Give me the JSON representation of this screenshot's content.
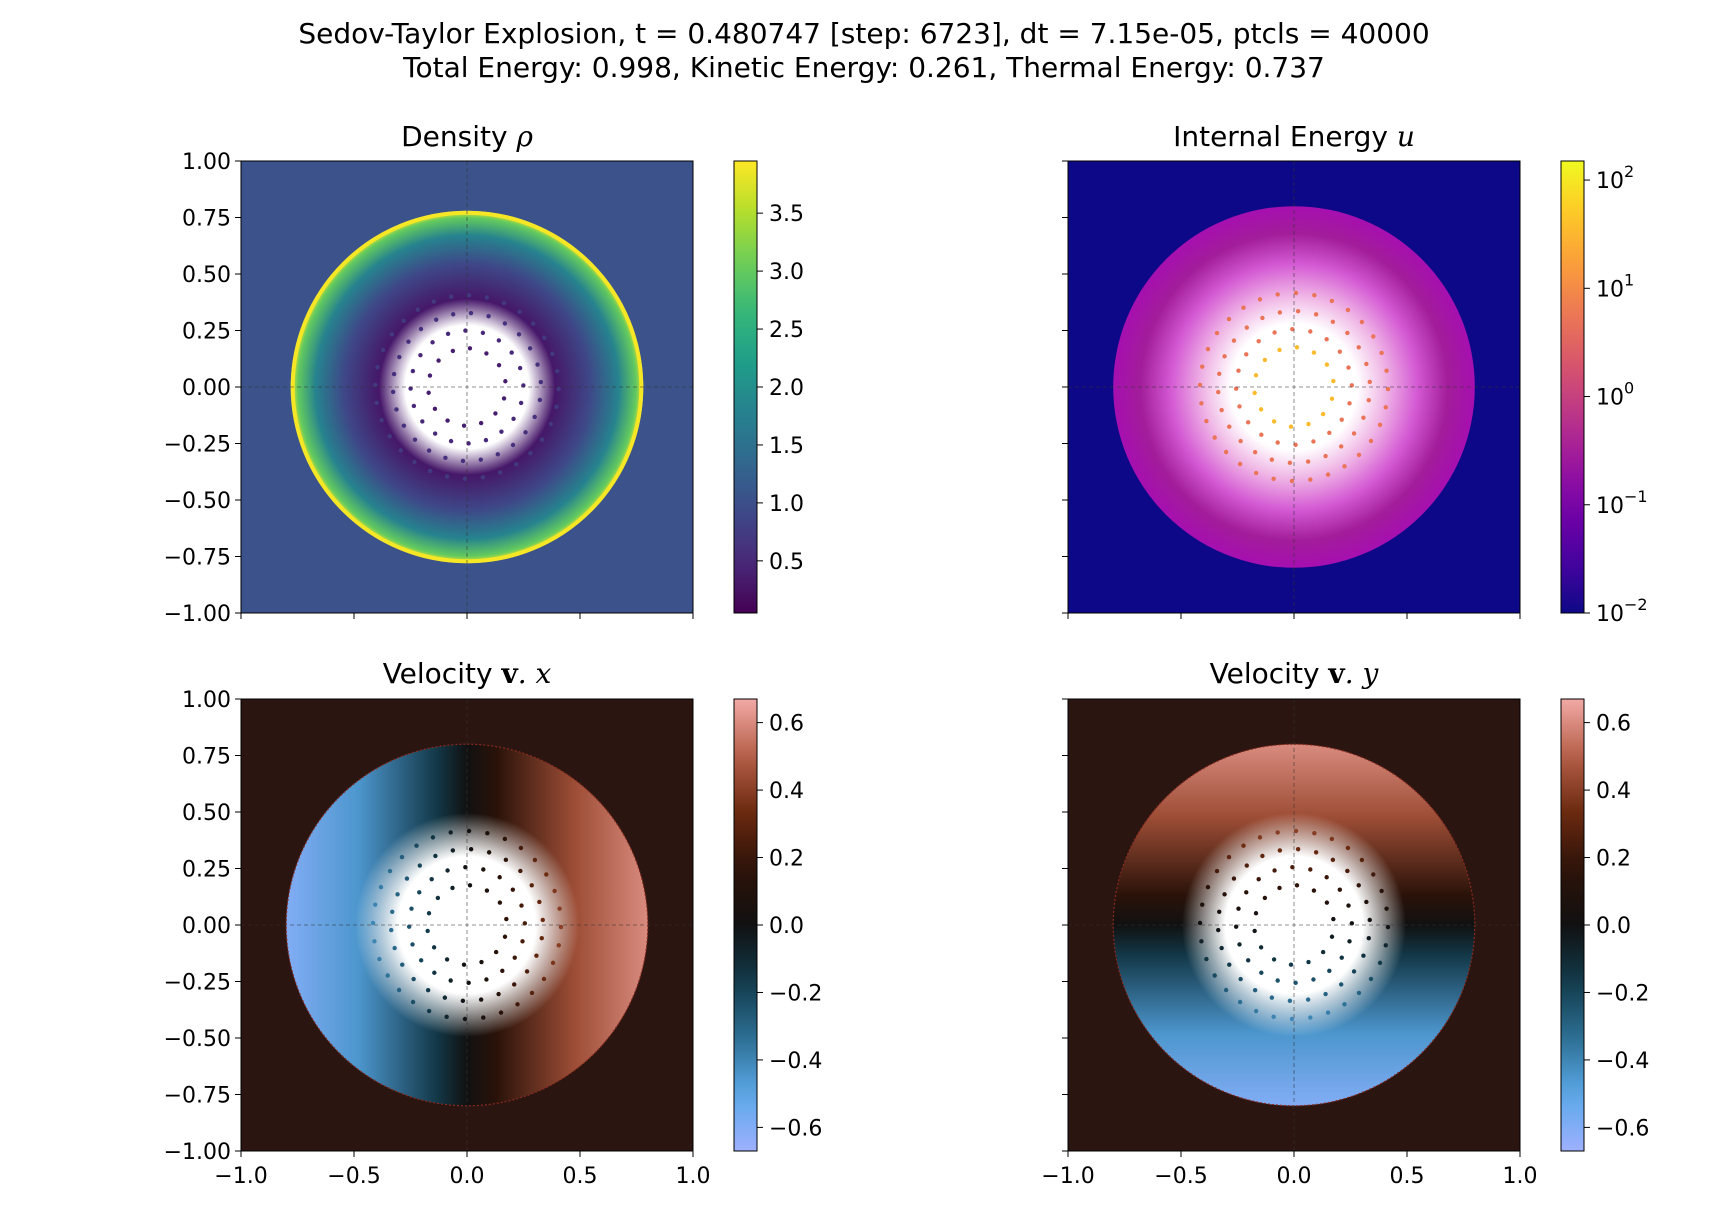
{
  "figure": {
    "suptitle_line1": "Sedov-Taylor Explosion, t = 0.480747 [step: 6723], dt = 7.15e-05, ptcls = 40000",
    "suptitle_line2": "Total Energy: 0.998, Kinetic Energy: 0.261, Thermal Energy: 0.737"
  },
  "chart_data": [
    {
      "type": "scatter",
      "field": "density",
      "title_text": "Density",
      "title_symbol": "ρ",
      "xlim": [
        -1.0,
        1.0
      ],
      "ylim": [
        -1.0,
        1.0
      ],
      "xticks": [],
      "yticks": [
        -1.0,
        -0.75,
        -0.5,
        -0.25,
        0.0,
        0.25,
        0.5,
        0.75,
        1.0
      ],
      "yticklabels": [
        "−1.00",
        "−0.75",
        "−0.50",
        "−0.25",
        "0.00",
        "0.25",
        "0.50",
        "0.75",
        "1.00"
      ],
      "shock_radius": 0.78,
      "colormap": "viridis",
      "colorbar": {
        "scale": "linear",
        "range": [
          0.05,
          3.95
        ],
        "ticks": [
          0.5,
          1.0,
          1.5,
          2.0,
          2.5,
          3.0,
          3.5
        ],
        "ticklabels": [
          "0.5",
          "1.0",
          "1.5",
          "2.0",
          "2.5",
          "3.0",
          "3.5"
        ]
      },
      "background_value": 1.0,
      "peak_value": 3.9
    },
    {
      "type": "scatter",
      "field": "internal_energy",
      "title_text": "Internal Energy",
      "title_symbol": "u",
      "xlim": [
        -1.0,
        1.0
      ],
      "ylim": [
        -1.0,
        1.0
      ],
      "xticks": [],
      "yticks": [],
      "shock_radius": 0.8,
      "colormap": "plasma",
      "colorbar": {
        "scale": "log",
        "range": [
          0.01,
          150
        ],
        "ticks": [
          0.01,
          0.1,
          1,
          10,
          100
        ],
        "ticklabels": [
          "10",
          "10",
          "10",
          "10",
          "10"
        ],
        "tick_exponents": [
          "−2",
          "−1",
          "0",
          "1",
          "2"
        ]
      },
      "background_value": 0.01,
      "shell_value": 0.3,
      "core_value": 30
    },
    {
      "type": "scatter",
      "field": "velocity_x",
      "title_text": "Velocity",
      "title_vec": "v",
      "title_comp": ". x",
      "xlim": [
        -1.0,
        1.0
      ],
      "ylim": [
        -1.0,
        1.0
      ],
      "xticks": [
        -1.0,
        -0.5,
        0.0,
        0.5,
        1.0
      ],
      "xticklabels": [
        "−1.0",
        "−0.5",
        "0.0",
        "0.5",
        "1.0"
      ],
      "yticks": [
        -1.0,
        -0.75,
        -0.5,
        -0.25,
        0.0,
        0.25,
        0.5,
        0.75,
        1.0
      ],
      "yticklabels": [
        "−1.00",
        "−0.75",
        "−0.50",
        "−0.25",
        "0.00",
        "0.25",
        "0.50",
        "0.75",
        "1.00"
      ],
      "shock_radius": 0.8,
      "colormap": "berlin",
      "colorbar": {
        "scale": "linear",
        "range": [
          -0.67,
          0.67
        ],
        "ticks": [
          -0.6,
          -0.4,
          -0.2,
          0.0,
          0.2,
          0.4,
          0.6
        ],
        "ticklabels": [
          "−0.6",
          "−0.4",
          "−0.2",
          "0.0",
          "0.2",
          "0.4",
          "0.6"
        ]
      },
      "max_speed": 0.6
    },
    {
      "type": "scatter",
      "field": "velocity_y",
      "title_text": "Velocity",
      "title_vec": "v",
      "title_comp": ". y",
      "xlim": [
        -1.0,
        1.0
      ],
      "ylim": [
        -1.0,
        1.0
      ],
      "xticks": [
        -1.0,
        -0.5,
        0.0,
        0.5,
        1.0
      ],
      "xticklabels": [
        "−1.0",
        "−0.5",
        "0.0",
        "0.5",
        "1.0"
      ],
      "yticks": [],
      "shock_radius": 0.8,
      "colormap": "berlin",
      "colorbar": {
        "scale": "linear",
        "range": [
          -0.67,
          0.67
        ],
        "ticks": [
          -0.6,
          -0.4,
          -0.2,
          0.0,
          0.2,
          0.4,
          0.6
        ],
        "ticklabels": [
          "−0.6",
          "−0.4",
          "−0.2",
          "0.0",
          "0.2",
          "0.4",
          "0.6"
        ]
      },
      "max_speed": 0.6
    }
  ],
  "colors": {
    "density_background": "#3b528b",
    "energy_background": "#0d0887",
    "velocity_background": "#2a1510"
  }
}
